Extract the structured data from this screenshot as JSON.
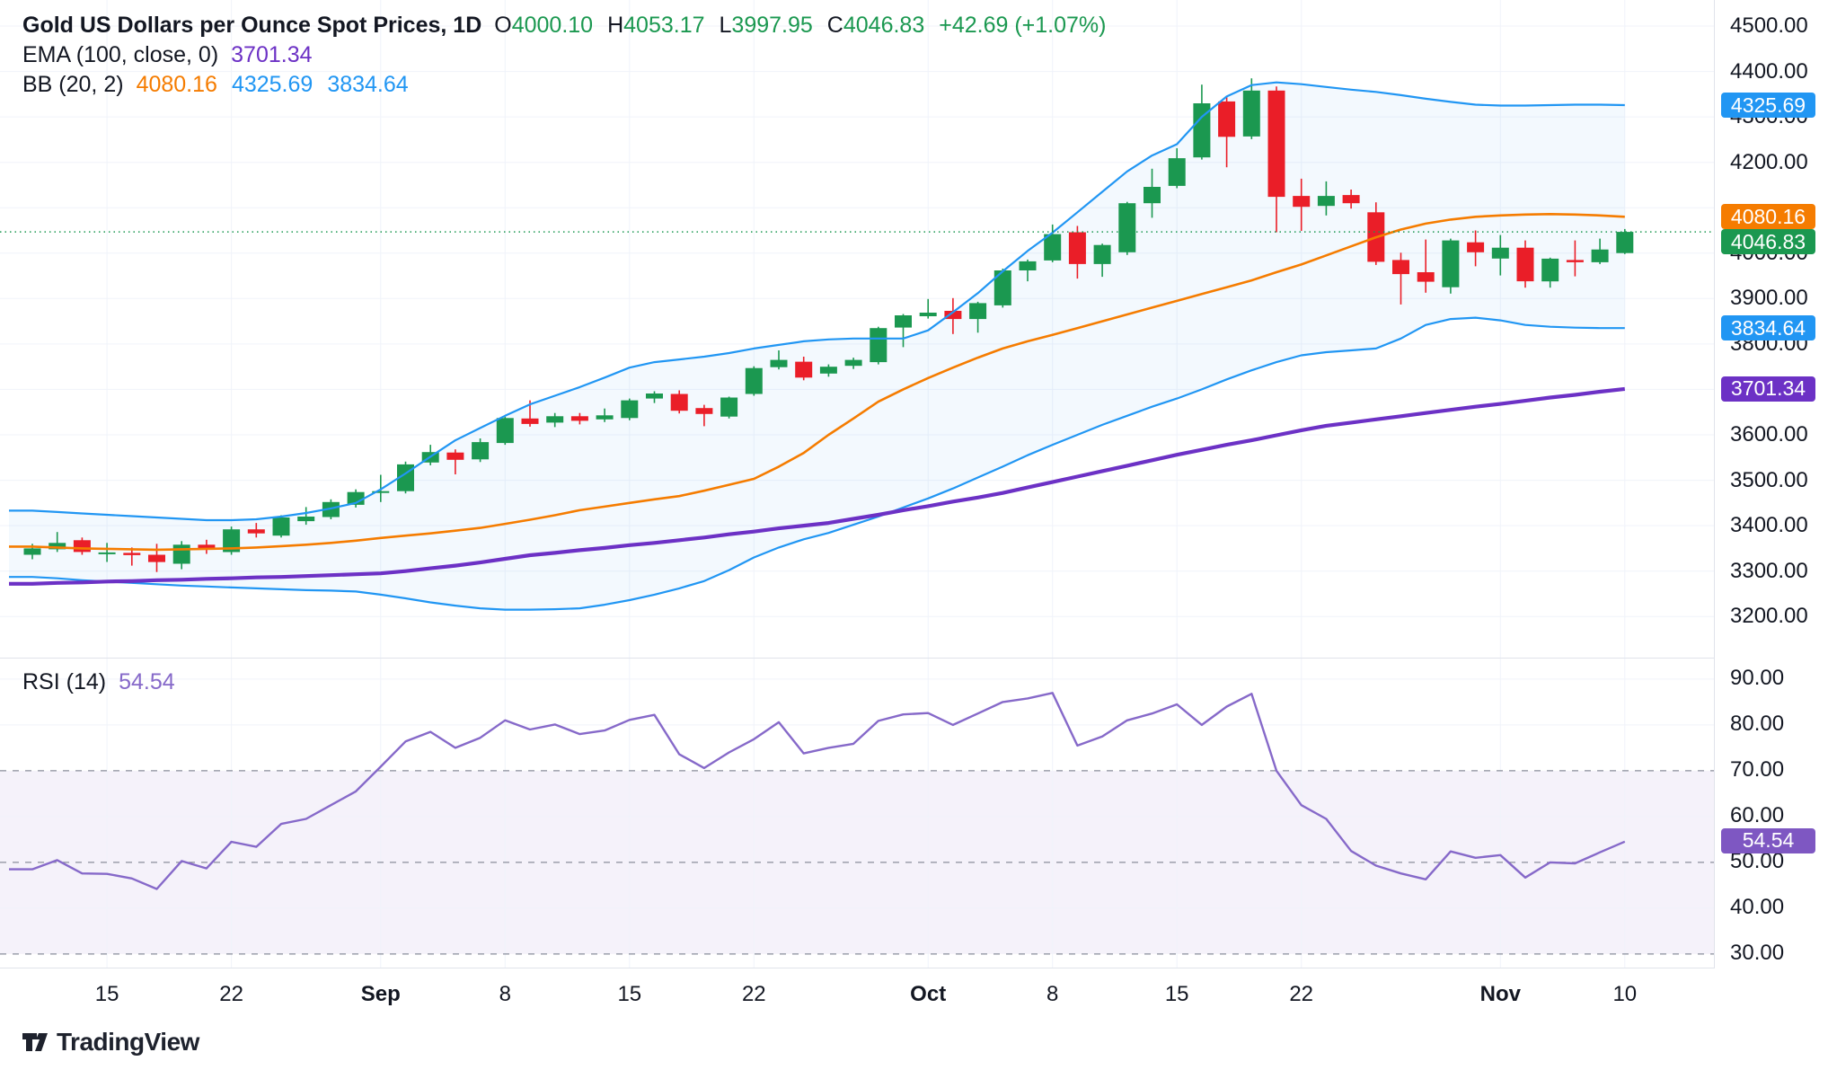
{
  "colors": {
    "up": "#1b9850",
    "down": "#ea1e28",
    "bb_line": "#2196f3",
    "bb_basis": "#f57c00",
    "bb_fill": "rgba(33,150,243,0.055)",
    "ema": "#6c31c5",
    "rsi_line": "#8669c9",
    "rsi_band": "rgba(126,87,194,0.08)",
    "rsi_dashed": "#8a8e9b",
    "grid": "#f0f3fa",
    "separator": "#e0e3eb",
    "text": "#131722",
    "badge_blue": "#2196f3",
    "badge_orange": "#f57c00",
    "badge_green": "#1b9850",
    "badge_purple_ema": "#6c31c5",
    "badge_purple_rsi": "#7e57c2"
  },
  "legend": {
    "title": "Gold US Dollars per Ounce Spot Prices, 1D",
    "o_label": "O",
    "o_value": "4000.10",
    "h_label": "H",
    "h_value": "4053.17",
    "l_label": "L",
    "l_value": "3997.95",
    "c_label": "C",
    "c_value": "4046.83",
    "change": "+42.69 (+1.07%)",
    "ema_label": "EMA (100, close, 0)",
    "ema_value": "3701.34",
    "bb_label": "BB (20, 2)",
    "bb_basis_value": "4080.16",
    "bb_upper_value": "4325.69",
    "bb_lower_value": "3834.64"
  },
  "rsi_legend": {
    "label": "RSI (14)",
    "value": "54.54"
  },
  "axis": {
    "price_tick_labels": [
      "4500.00",
      "4400.00",
      "4300.00",
      "4200.00",
      "4000.00",
      "3900.00",
      "3800.00",
      "3600.00",
      "3500.00",
      "3400.00",
      "3300.00",
      "3200.00"
    ],
    "price_tick_values": [
      4500,
      4400,
      4300,
      4200,
      4000,
      3900,
      3800,
      3600,
      3500,
      3400,
      3300,
      3200
    ],
    "rsi_tick_labels": [
      "90.00",
      "80.00",
      "70.00",
      "60.00",
      "50.00",
      "40.00",
      "30.00"
    ],
    "rsi_tick_values": [
      90,
      80,
      70,
      60,
      50,
      40,
      30
    ],
    "badges": [
      {
        "label": "4325.69",
        "value": 4325.69,
        "pane": "price",
        "color": "#2196f3"
      },
      {
        "label": "4080.16",
        "value": 4080.16,
        "pane": "price",
        "color": "#f57c00"
      },
      {
        "label": "4046.83",
        "value": 4046.83,
        "pane": "price",
        "color": "#1b9850"
      },
      {
        "label": "3834.64",
        "value": 3834.64,
        "pane": "price",
        "color": "#2196f3"
      },
      {
        "label": "3701.34",
        "value": 3701.34,
        "pane": "price",
        "color": "#6c31c5"
      },
      {
        "label": "54.54",
        "value": 54.54,
        "pane": "rsi",
        "color": "#7e57c2"
      }
    ]
  },
  "logo": {
    "text": "TradingView"
  },
  "chart_data": {
    "type": "candlestick",
    "title": "Gold US Dollars per Ounce Spot Prices",
    "interval": "1D",
    "last_price": 4046.83,
    "rsi_last": 54.54,
    "ylim_price": [
      3110,
      4557
    ],
    "ylim_rsi": [
      27,
      94.5
    ],
    "price_grid_levels": [
      4500,
      4400,
      4300,
      4200,
      4100,
      4000,
      3900,
      3800,
      3700,
      3600,
      3500,
      3400,
      3300,
      3200
    ],
    "rsi_solid_levels": [
      90,
      80,
      60,
      40
    ],
    "rsi_dashed_levels": [
      70,
      50,
      30
    ],
    "rsi_band": [
      30,
      70
    ],
    "x_ticks": [
      {
        "i": 3,
        "label": "15",
        "bold": false
      },
      {
        "i": 8,
        "label": "22",
        "bold": false
      },
      {
        "i": 14,
        "label": "Sep",
        "bold": true
      },
      {
        "i": 19,
        "label": "8",
        "bold": false
      },
      {
        "i": 24,
        "label": "15",
        "bold": false
      },
      {
        "i": 29,
        "label": "22",
        "bold": false
      },
      {
        "i": 36,
        "label": "Oct",
        "bold": true
      },
      {
        "i": 41,
        "label": "8",
        "bold": false
      },
      {
        "i": 46,
        "label": "15",
        "bold": false
      },
      {
        "i": 51,
        "label": "22",
        "bold": false
      },
      {
        "i": 59,
        "label": "Nov",
        "bold": true
      },
      {
        "i": 64,
        "label": "10",
        "bold": false
      }
    ],
    "candles": [
      [
        3336,
        3360,
        3326,
        3350
      ],
      [
        3348,
        3386,
        3342,
        3362
      ],
      [
        3368,
        3374,
        3336,
        3342
      ],
      [
        3340,
        3362,
        3320,
        3341
      ],
      [
        3340,
        3352,
        3312,
        3335
      ],
      [
        3336,
        3360,
        3298,
        3320
      ],
      [
        3316,
        3366,
        3304,
        3358
      ],
      [
        3358,
        3369,
        3338,
        3347
      ],
      [
        3342,
        3398,
        3336,
        3392
      ],
      [
        3392,
        3406,
        3374,
        3383
      ],
      [
        3378,
        3423,
        3374,
        3418
      ],
      [
        3410,
        3441,
        3402,
        3420
      ],
      [
        3419,
        3458,
        3414,
        3452
      ],
      [
        3446,
        3480,
        3440,
        3474
      ],
      [
        3474,
        3512,
        3452,
        3476
      ],
      [
        3476,
        3541,
        3471,
        3535
      ],
      [
        3539,
        3578,
        3533,
        3562
      ],
      [
        3561,
        3568,
        3513,
        3545
      ],
      [
        3546,
        3592,
        3540,
        3584
      ],
      [
        3582,
        3640,
        3578,
        3637
      ],
      [
        3636,
        3676,
        3618,
        3624
      ],
      [
        3627,
        3648,
        3617,
        3641
      ],
      [
        3641,
        3648,
        3623,
        3631
      ],
      [
        3634,
        3658,
        3628,
        3643
      ],
      [
        3637,
        3680,
        3632,
        3676
      ],
      [
        3680,
        3696,
        3670,
        3691
      ],
      [
        3690,
        3698,
        3647,
        3653
      ],
      [
        3659,
        3666,
        3619,
        3646
      ],
      [
        3640,
        3684,
        3636,
        3682
      ],
      [
        3690,
        3751,
        3686,
        3747
      ],
      [
        3749,
        3786,
        3744,
        3765
      ],
      [
        3761,
        3772,
        3720,
        3726
      ],
      [
        3735,
        3755,
        3728,
        3750
      ],
      [
        3752,
        3770,
        3745,
        3765
      ],
      [
        3760,
        3838,
        3755,
        3835
      ],
      [
        3836,
        3866,
        3793,
        3863
      ],
      [
        3861,
        3899,
        3856,
        3869
      ],
      [
        3873,
        3901,
        3822,
        3855
      ],
      [
        3855,
        3893,
        3825,
        3890
      ],
      [
        3885,
        3966,
        3880,
        3962
      ],
      [
        3962,
        3986,
        3938,
        3982
      ],
      [
        3984,
        4063,
        3980,
        4042
      ],
      [
        4046,
        4060,
        3944,
        3976
      ],
      [
        3976,
        4021,
        3948,
        4018
      ],
      [
        4002,
        4113,
        3996,
        4110
      ],
      [
        4110,
        4186,
        4078,
        4146
      ],
      [
        4148,
        4231,
        4143,
        4209
      ],
      [
        4211,
        4371,
        4206,
        4330
      ],
      [
        4334,
        4345,
        4189,
        4256
      ],
      [
        4257,
        4385,
        4251,
        4358
      ],
      [
        4358,
        4367,
        4046,
        4124
      ],
      [
        4126,
        4164,
        4049,
        4102
      ],
      [
        4104,
        4158,
        4083,
        4126
      ],
      [
        4128,
        4140,
        4098,
        4110
      ],
      [
        4090,
        4112,
        3974,
        3981
      ],
      [
        3985,
        4001,
        3887,
        3954
      ],
      [
        3958,
        4030,
        3913,
        3937
      ],
      [
        3925,
        4032,
        3911,
        4028
      ],
      [
        4024,
        4050,
        3971,
        4002
      ],
      [
        3988,
        4040,
        3951,
        4012
      ],
      [
        4012,
        4028,
        3924,
        3938
      ],
      [
        3938,
        3990,
        3924,
        3988
      ],
      [
        3985,
        4028,
        3949,
        3980
      ],
      [
        3980,
        4032,
        3976,
        4008
      ],
      [
        4000.1,
        4053.17,
        3997.95,
        4046.83
      ]
    ],
    "series": [
      {
        "name": "EMA (100, close, 0)",
        "color": "#6c31c5",
        "values": [
          3272,
          3274,
          3275,
          3277,
          3278,
          3280,
          3281,
          3283,
          3284,
          3286,
          3287,
          3289,
          3291,
          3293,
          3295,
          3300,
          3306,
          3312,
          3319,
          3327,
          3335,
          3340,
          3346,
          3351,
          3357,
          3362,
          3368,
          3374,
          3381,
          3387,
          3394,
          3400,
          3406,
          3415,
          3424,
          3434,
          3443,
          3453,
          3462,
          3472,
          3484,
          3496,
          3508,
          3520,
          3532,
          3544,
          3556,
          3567,
          3578,
          3588,
          3599,
          3610,
          3620,
          3627,
          3634,
          3641,
          3648,
          3655,
          3662,
          3668,
          3675,
          3682,
          3688,
          3695,
          3701
        ]
      },
      {
        "name": "BB basis (20, 2)",
        "color": "#f57c00",
        "values": [
          3354,
          3352,
          3350,
          3349,
          3348,
          3347,
          3348,
          3349,
          3350,
          3352,
          3355,
          3358,
          3362,
          3367,
          3373,
          3378,
          3383,
          3389,
          3395,
          3404,
          3413,
          3423,
          3434,
          3442,
          3450,
          3458,
          3465,
          3477,
          3490,
          3503,
          3530,
          3560,
          3600,
          3636,
          3673,
          3700,
          3725,
          3748,
          3770,
          3790,
          3806,
          3820,
          3835,
          3850,
          3865,
          3880,
          3895,
          3910,
          3925,
          3940,
          3958,
          3975,
          3995,
          4015,
          4035,
          4052,
          4065,
          4074,
          4080,
          4083,
          4085,
          4086,
          4085,
          4083,
          4080
        ]
      },
      {
        "name": "BB upper (20, 2)",
        "color": "#2196f3",
        "values": [
          3433,
          3430,
          3427,
          3424,
          3421,
          3418,
          3415,
          3412,
          3412,
          3414,
          3420,
          3428,
          3438,
          3450,
          3480,
          3515,
          3552,
          3588,
          3615,
          3642,
          3667,
          3686,
          3705,
          3726,
          3748,
          3760,
          3766,
          3772,
          3780,
          3790,
          3798,
          3806,
          3810,
          3812,
          3812,
          3812,
          3830,
          3870,
          3912,
          3960,
          4005,
          4045,
          4090,
          4135,
          4180,
          4215,
          4240,
          4300,
          4345,
          4370,
          4376,
          4372,
          4366,
          4360,
          4355,
          4348,
          4340,
          4333,
          4327,
          4325,
          4325,
          4326,
          4327,
          4327,
          4326
        ]
      },
      {
        "name": "BB lower (20, 2)",
        "color": "#2196f3",
        "values": [
          3287,
          3284,
          3280,
          3277,
          3274,
          3271,
          3268,
          3266,
          3264,
          3262,
          3260,
          3258,
          3257,
          3255,
          3248,
          3240,
          3231,
          3224,
          3218,
          3215,
          3215,
          3216,
          3218,
          3226,
          3236,
          3248,
          3262,
          3278,
          3302,
          3330,
          3352,
          3370,
          3384,
          3402,
          3420,
          3440,
          3460,
          3482,
          3506,
          3530,
          3555,
          3578,
          3600,
          3622,
          3642,
          3662,
          3680,
          3700,
          3722,
          3742,
          3760,
          3775,
          3782,
          3786,
          3790,
          3812,
          3842,
          3855,
          3858,
          3852,
          3842,
          3838,
          3836,
          3835,
          3835
        ]
      },
      {
        "name": "RSI (14)",
        "color": "#8669c9",
        "values": [
          48.5,
          50.5,
          47.6,
          47.5,
          46.5,
          44.2,
          50.3,
          48.7,
          54.5,
          53.4,
          58.4,
          59.5,
          62.5,
          65.5,
          70.9,
          76.4,
          78.5,
          75.0,
          77.2,
          81.0,
          79.0,
          80.1,
          78.0,
          78.8,
          81.1,
          82.2,
          73.6,
          70.6,
          74.0,
          76.9,
          80.6,
          73.8,
          75.0,
          75.9,
          80.9,
          82.3,
          82.6,
          80.0,
          82.5,
          85.0,
          85.8,
          87.0,
          75.5,
          77.5,
          81.0,
          82.5,
          84.5,
          80.0,
          84.0,
          86.8,
          70.0,
          62.5,
          59.5,
          52.5,
          49.3,
          47.6,
          46.3,
          52.4,
          51.0,
          51.6,
          46.7,
          50.0,
          49.8,
          52.2,
          54.54
        ]
      }
    ]
  }
}
